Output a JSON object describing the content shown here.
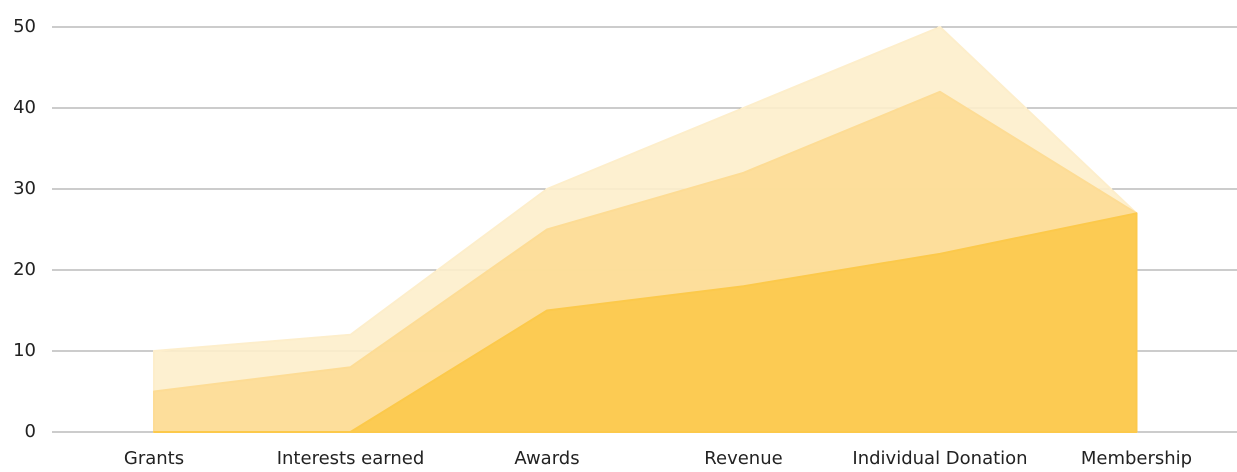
{
  "chart_data": {
    "type": "area",
    "categories": [
      "Grants",
      "Interests earned",
      "Awards",
      "Revenue",
      "Individual Donation",
      "Membership"
    ],
    "series": [
      {
        "color": "#fdeecb",
        "values": [
          10,
          12,
          30,
          40,
          50,
          27
        ]
      },
      {
        "color": "#fddc95",
        "values": [
          5,
          8,
          25,
          32,
          42,
          27
        ]
      },
      {
        "color": "#fcc94b",
        "values": [
          0,
          0,
          15,
          18,
          22,
          27
        ]
      }
    ],
    "ylim": [
      0,
      50
    ],
    "yticks": [
      0,
      10,
      20,
      30,
      40,
      50
    ],
    "grid": true
  }
}
